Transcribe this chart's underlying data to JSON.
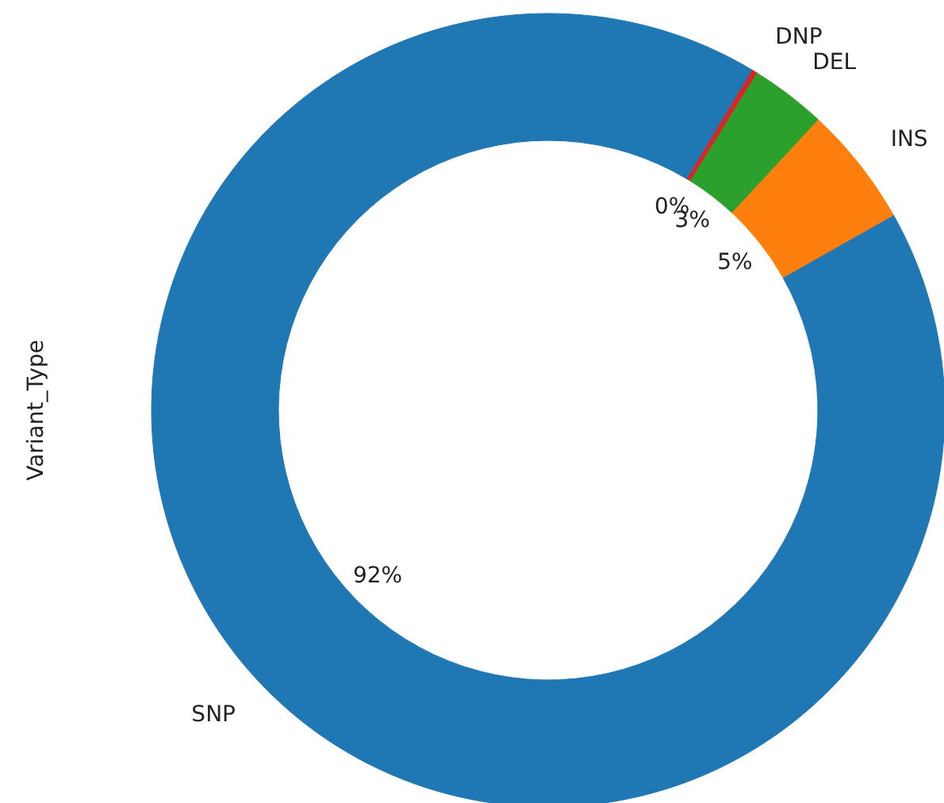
{
  "chart_data": {
    "type": "donut",
    "ylabel": "Variant_Type",
    "categories": [
      "SNP",
      "INS",
      "DEL",
      "DNP"
    ],
    "values": [
      91.8,
      4.9,
      3.1,
      0.2
    ],
    "colors": [
      "#1f77b4",
      "#ff7f0e",
      "#2ca02c",
      "#d62728"
    ],
    "value_labels": [
      "92%",
      "5%",
      "3%",
      "0%"
    ]
  }
}
